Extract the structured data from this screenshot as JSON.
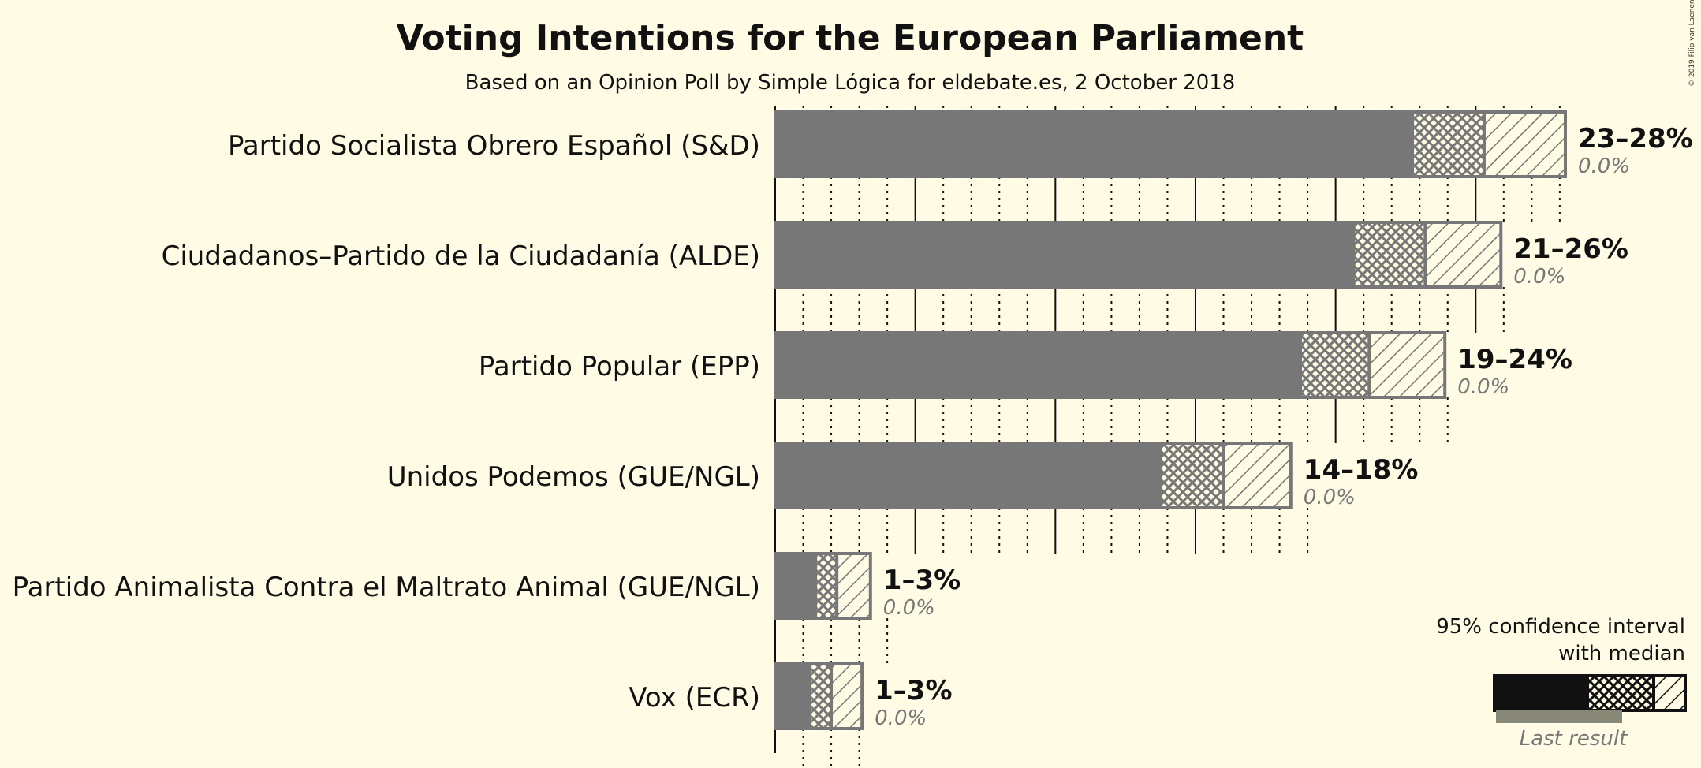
{
  "chart_data": {
    "type": "bar",
    "orientation": "horizontal",
    "title": "Voting Intentions for the European Parliament",
    "subtitle": "Based on an Opinion Poll by Simple Lógica for eldebate.es, 2 October 2018",
    "copyright": "© 2019 Filip van Laenen",
    "xlim": [
      0,
      28.2
    ],
    "grid": true,
    "unit": "%",
    "categories": [
      "Partido Socialista Obrero Español (S&D)",
      "Ciudadanos–Partido de la Ciudadanía (ALDE)",
      "Partido Popular (EPP)",
      "Unidos Podemos (GUE/NGL)",
      "Partido Animalista Contra el Maltrato Animal (GUE/NGL)",
      "Vox (ECR)"
    ],
    "series": [
      {
        "ci_low": [
          22.8,
          20.7,
          18.8,
          13.8,
          1.5,
          1.3
        ],
        "median": [
          25.3,
          23.2,
          21.2,
          16.0,
          2.2,
          2.0
        ],
        "ci_high": [
          28.2,
          25.9,
          23.9,
          18.4,
          3.4,
          3.1
        ],
        "range_labels": [
          "23–28%",
          "21–26%",
          "19–24%",
          "14–18%",
          "1–3%",
          "1–3%"
        ],
        "last_result": [
          0.0,
          0.0,
          0.0,
          0.0,
          0.0,
          0.0
        ],
        "last_result_labels": [
          "0.0%",
          "0.0%",
          "0.0%",
          "0.0%",
          "0.0%",
          "0.0%"
        ]
      }
    ],
    "legend": {
      "placement": "bottom-right",
      "line1": "95% confidence interval",
      "line2": "with median",
      "last_result": "Last result"
    },
    "colors": {
      "background": "#fffbe4",
      "bar": "#777777",
      "bar_outline": "#777777",
      "legend_bar": "#111111",
      "last_result_bar": "#888877",
      "grid": "#111111",
      "last_result_text": "#777777"
    }
  }
}
